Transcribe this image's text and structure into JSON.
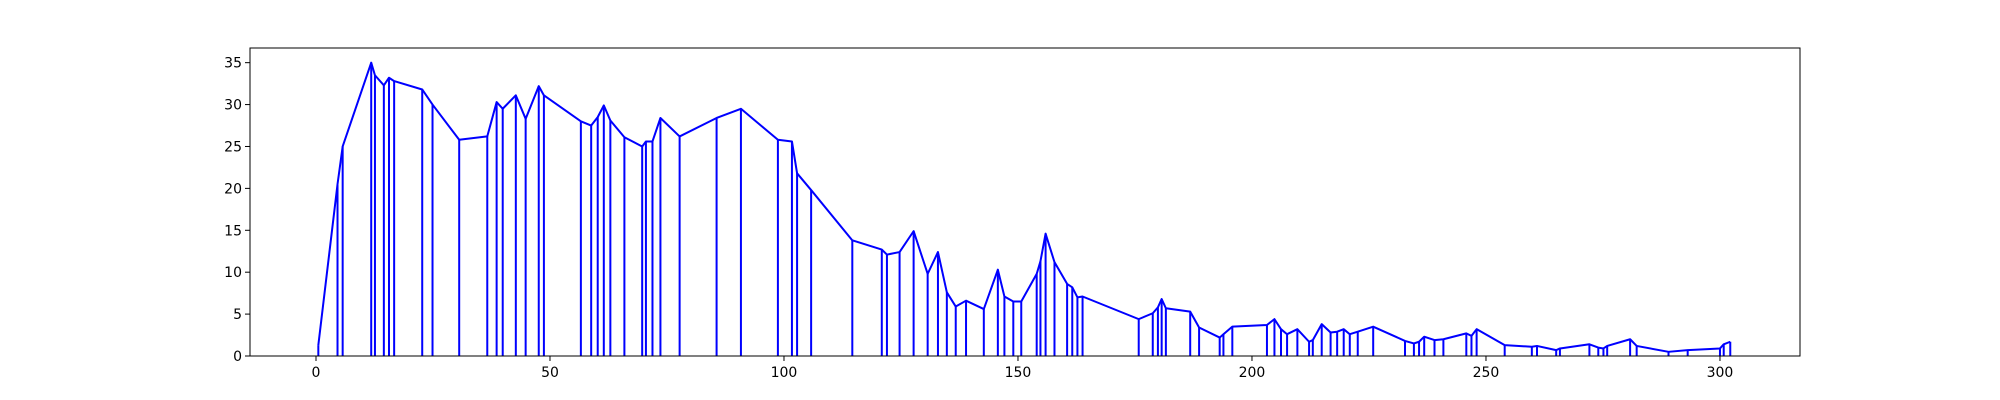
{
  "chart_data": {
    "type": "line",
    "color": "blue",
    "stems": true,
    "x": [
      0.5,
      4.6,
      5.7,
      11.8,
      12.6,
      14.5,
      15.6,
      16.7,
      22.7,
      24.9,
      30.6,
      36.6,
      38.6,
      39.9,
      42.7,
      44.8,
      47.6,
      48.7,
      56.6,
      58.8,
      60.2,
      61.5,
      62.9,
      65.9,
      69.7,
      70.5,
      71.9,
      73.6,
      77.7,
      85.6,
      90.8,
      98.7,
      101.7,
      102.8,
      105.8,
      114.6,
      120.9,
      122,
      124.7,
      127.7,
      130.7,
      132.9,
      134.8,
      136.7,
      138.9,
      142.7,
      145.7,
      147.1,
      149,
      150.7,
      154,
      154.8,
      155.9,
      157.8,
      160.5,
      161.6,
      162.7,
      163.8,
      175.8,
      178.8,
      179.9,
      180.7,
      181.6,
      186.8,
      188.7,
      193.1,
      193.9,
      195.8,
      203.2,
      204.8,
      206.2,
      207.5,
      209.7,
      212.2,
      213,
      214.9,
      216.8,
      218.2,
      219.6,
      220.9,
      222.6,
      225.9,
      232.7,
      234.6,
      235.7,
      236.8,
      239,
      240.9,
      245.8,
      246.9,
      248,
      254,
      259.8,
      260.9,
      265,
      265.8,
      272.1,
      274,
      275.1,
      275.9,
      280.8,
      282.2,
      289,
      293.1,
      300,
      300.8,
      302.2
    ],
    "values": [
      1.3,
      20.5,
      25,
      35,
      33.5,
      32.3,
      33.2,
      32.8,
      31.8,
      30,
      25.8,
      26.2,
      30.3,
      29.5,
      31.1,
      28.3,
      32.2,
      31.1,
      28,
      27.5,
      28.5,
      29.9,
      28.1,
      26.1,
      25,
      25.6,
      25.6,
      28.4,
      26.2,
      28.4,
      29.5,
      25.8,
      25.6,
      21.8,
      19.8,
      13.8,
      12.7,
      12.1,
      12.4,
      14.9,
      9.8,
      12.4,
      7.6,
      5.9,
      6.6,
      5.6,
      10.3,
      7.1,
      6.5,
      6.5,
      9.8,
      11.3,
      14.6,
      11.2,
      8.6,
      8.2,
      7,
      7.1,
      4.4,
      5.1,
      5.8,
      6.8,
      5.7,
      5.3,
      3.4,
      2.2,
      2.6,
      3.5,
      3.7,
      4.4,
      3.2,
      2.6,
      3.2,
      1.7,
      1.9,
      3.8,
      2.8,
      2.9,
      3.2,
      2.6,
      2.9,
      3.5,
      1.8,
      1.5,
      1.7,
      2.3,
      1.9,
      2,
      2.7,
      2.4,
      3.2,
      1.3,
      1.1,
      1.2,
      0.7,
      0.9,
      1.4,
      1,
      0.9,
      1.2,
      2,
      1.2,
      0.5,
      0.7,
      0.9,
      1.4,
      1.7
    ],
    "xlim": [
      -14.1,
      317.1
    ],
    "ylim": [
      0,
      36.75
    ],
    "xticks": [
      0,
      50,
      100,
      150,
      200,
      250,
      300
    ],
    "yticks": [
      0,
      5,
      10,
      15,
      20,
      25,
      30,
      35
    ]
  }
}
